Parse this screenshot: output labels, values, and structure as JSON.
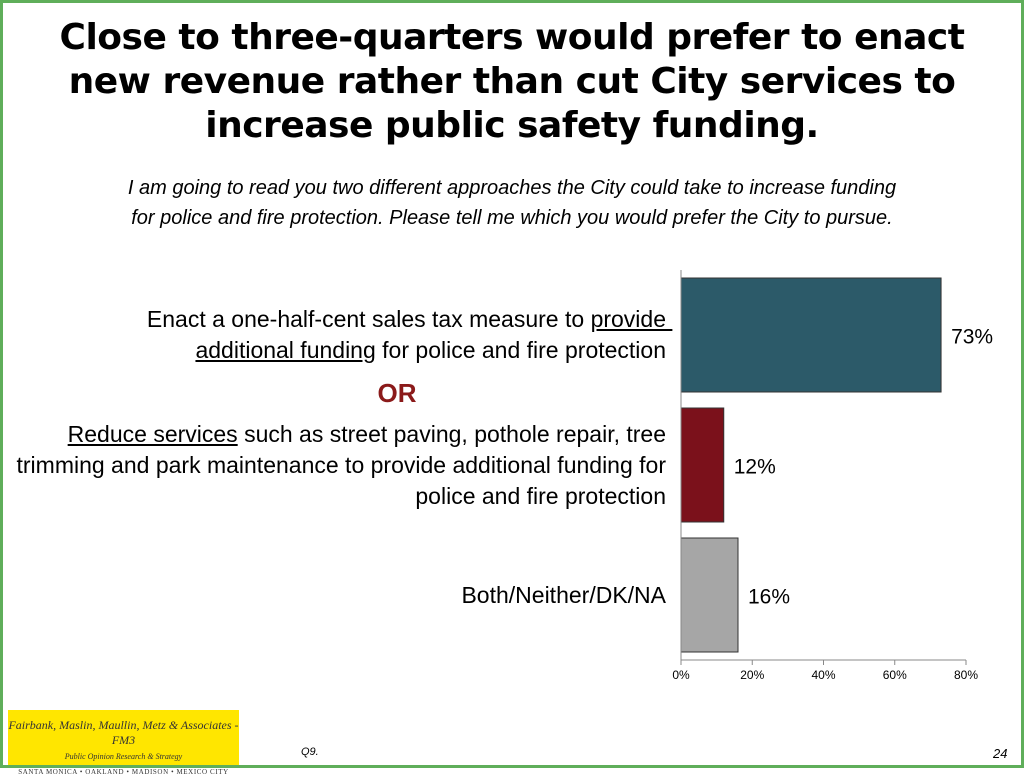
{
  "chart_data": {
    "type": "bar",
    "orientation": "horizontal",
    "title": [
      "Close to three-quarters would prefer to enact",
      "new revenue rather than cut City services to",
      "increase public safety funding."
    ],
    "subtitle": [
      "I am going to read you two different approaches the City could take to increase funding",
      "for police and fire protection.  Please tell me which you would prefer the City to pursue."
    ],
    "categories": [
      [
        {
          "text": "Enact a one-half-cent sales tax measure to ",
          "underline": false
        },
        {
          "text": "provide additional funding",
          "underline": true
        },
        {
          "text": " for police and fire protection",
          "underline": false
        }
      ],
      [
        {
          "text": "Reduce services",
          "underline": true
        },
        {
          "text": " such as street paving, pothole repair, tree trimming and park maintenance to provide additional funding for police and fire protection",
          "underline": false
        }
      ],
      [
        {
          "text": "Both/Neither/DK/NA",
          "underline": false
        }
      ]
    ],
    "separator": "OR",
    "values": [
      73,
      12,
      16
    ],
    "value_labels": [
      "73%",
      "12%",
      "16%"
    ],
    "colors": [
      "#2c5a69",
      "#7b111b",
      "#a6a6a6"
    ],
    "xlim": [
      0,
      80
    ],
    "xticks": [
      {
        "value": 0,
        "label": "0%"
      },
      {
        "value": 20,
        "label": "20%"
      },
      {
        "value": 40,
        "label": "40%"
      },
      {
        "value": 60,
        "label": "60%"
      },
      {
        "value": 80,
        "label": "80%"
      }
    ]
  },
  "footer": {
    "logo": [
      "Fairbank, Maslin, Maullin, Metz & Associates - FM3",
      "Public Opinion Research & Strategy",
      "SANTA MONICA • OAKLAND • MADISON • MEXICO CITY"
    ],
    "question": "Q9.",
    "page": "24"
  }
}
